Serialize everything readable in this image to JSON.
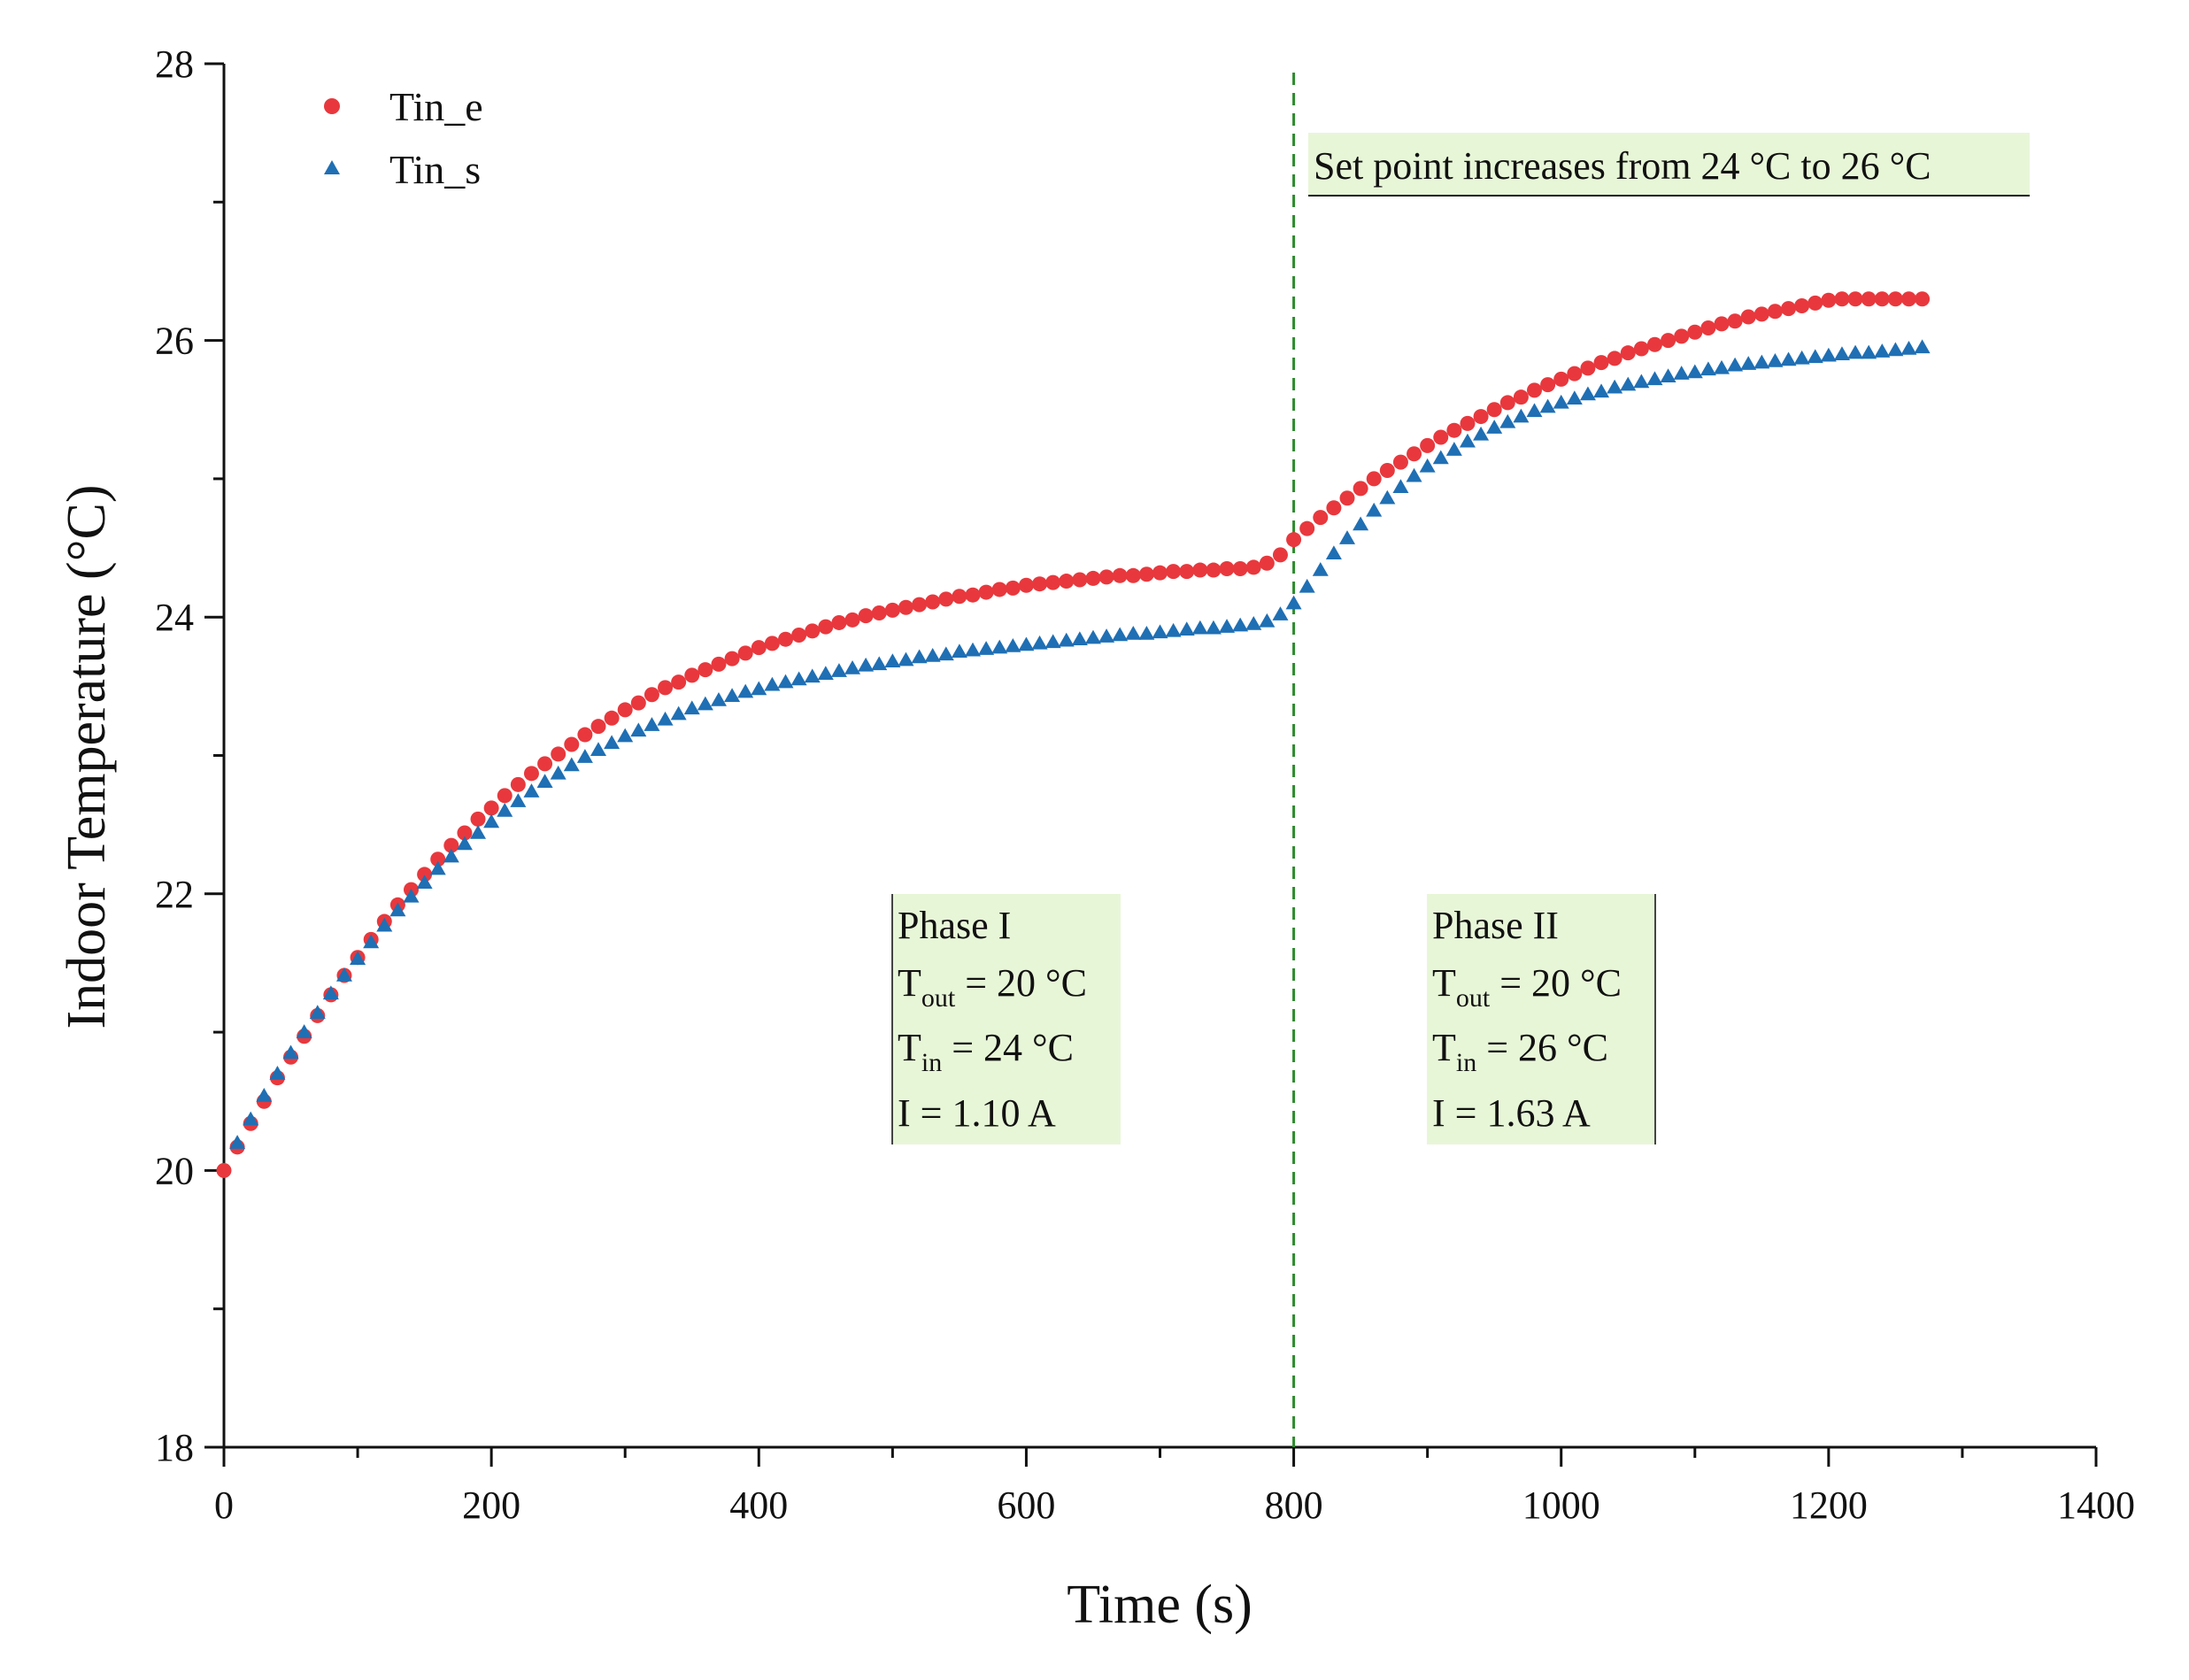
{
  "chart_data": {
    "type": "scatter",
    "xlabel": "Time (s)",
    "ylabel": "Indoor Temperature (°C)",
    "xlim": [
      0,
      1400
    ],
    "ylim": [
      18,
      28
    ],
    "x_ticks": [
      0,
      200,
      400,
      600,
      800,
      1000,
      1200,
      1400
    ],
    "y_ticks": [
      18,
      20,
      22,
      24,
      26,
      28
    ],
    "x_minor_step": 100,
    "y_minor_step": 1,
    "legend_position": "top-left",
    "colors": {
      "Tin_e": "#e8383d",
      "Tin_s": "#1f6fb4",
      "divider": "#2e8b2e",
      "box_fill": "#e8f6d8"
    },
    "series": [
      {
        "name": "Tin_e",
        "marker": "circle",
        "points": [
          [
            0,
            20.0
          ],
          [
            10,
            20.17
          ],
          [
            20,
            20.34
          ],
          [
            30,
            20.5
          ],
          [
            40,
            20.67
          ],
          [
            50,
            20.82
          ],
          [
            60,
            20.97
          ],
          [
            70,
            21.12
          ],
          [
            80,
            21.27
          ],
          [
            90,
            21.41
          ],
          [
            100,
            21.54
          ],
          [
            110,
            21.67
          ],
          [
            120,
            21.8
          ],
          [
            130,
            21.92
          ],
          [
            140,
            22.03
          ],
          [
            150,
            22.14
          ],
          [
            160,
            22.25
          ],
          [
            170,
            22.35
          ],
          [
            180,
            22.44
          ],
          [
            190,
            22.54
          ],
          [
            200,
            22.62
          ],
          [
            210,
            22.71
          ],
          [
            220,
            22.79
          ],
          [
            230,
            22.87
          ],
          [
            240,
            22.94
          ],
          [
            250,
            23.01
          ],
          [
            260,
            23.08
          ],
          [
            270,
            23.15
          ],
          [
            280,
            23.21
          ],
          [
            290,
            23.27
          ],
          [
            300,
            23.33
          ],
          [
            310,
            23.38
          ],
          [
            320,
            23.44
          ],
          [
            330,
            23.49
          ],
          [
            340,
            23.53
          ],
          [
            350,
            23.58
          ],
          [
            360,
            23.62
          ],
          [
            370,
            23.66
          ],
          [
            380,
            23.7
          ],
          [
            390,
            23.74
          ],
          [
            400,
            23.78
          ],
          [
            410,
            23.81
          ],
          [
            420,
            23.84
          ],
          [
            430,
            23.87
          ],
          [
            440,
            23.9
          ],
          [
            450,
            23.93
          ],
          [
            460,
            23.96
          ],
          [
            470,
            23.98
          ],
          [
            480,
            24.01
          ],
          [
            490,
            24.03
          ],
          [
            500,
            24.05
          ],
          [
            510,
            24.07
          ],
          [
            520,
            24.09
          ],
          [
            530,
            24.11
          ],
          [
            540,
            24.13
          ],
          [
            550,
            24.15
          ],
          [
            560,
            24.16
          ],
          [
            570,
            24.18
          ],
          [
            580,
            24.2
          ],
          [
            590,
            24.21
          ],
          [
            600,
            24.23
          ],
          [
            610,
            24.24
          ],
          [
            620,
            24.25
          ],
          [
            630,
            24.26
          ],
          [
            640,
            24.27
          ],
          [
            650,
            24.28
          ],
          [
            660,
            24.29
          ],
          [
            670,
            24.3
          ],
          [
            680,
            24.3
          ],
          [
            690,
            24.31
          ],
          [
            700,
            24.32
          ],
          [
            710,
            24.33
          ],
          [
            720,
            24.33
          ],
          [
            730,
            24.34
          ],
          [
            740,
            24.34
          ],
          [
            750,
            24.35
          ],
          [
            760,
            24.35
          ],
          [
            770,
            24.36
          ],
          [
            780,
            24.39
          ],
          [
            790,
            24.45
          ],
          [
            800,
            24.56
          ],
          [
            810,
            24.64
          ],
          [
            820,
            24.72
          ],
          [
            830,
            24.79
          ],
          [
            840,
            24.86
          ],
          [
            850,
            24.93
          ],
          [
            860,
            25.0
          ],
          [
            870,
            25.06
          ],
          [
            880,
            25.12
          ],
          [
            890,
            25.18
          ],
          [
            900,
            25.24
          ],
          [
            910,
            25.3
          ],
          [
            920,
            25.35
          ],
          [
            930,
            25.4
          ],
          [
            940,
            25.45
          ],
          [
            950,
            25.5
          ],
          [
            960,
            25.55
          ],
          [
            970,
            25.59
          ],
          [
            980,
            25.64
          ],
          [
            990,
            25.68
          ],
          [
            1000,
            25.72
          ],
          [
            1010,
            25.76
          ],
          [
            1020,
            25.8
          ],
          [
            1030,
            25.84
          ],
          [
            1040,
            25.87
          ],
          [
            1050,
            25.91
          ],
          [
            1060,
            25.94
          ],
          [
            1070,
            25.97
          ],
          [
            1080,
            26.0
          ],
          [
            1090,
            26.03
          ],
          [
            1100,
            26.06
          ],
          [
            1110,
            26.09
          ],
          [
            1120,
            26.12
          ],
          [
            1130,
            26.14
          ],
          [
            1140,
            26.17
          ],
          [
            1150,
            26.19
          ],
          [
            1160,
            26.21
          ],
          [
            1170,
            26.23
          ],
          [
            1180,
            26.25
          ],
          [
            1190,
            26.27
          ],
          [
            1200,
            26.29
          ],
          [
            1210,
            26.3
          ],
          [
            1220,
            26.3
          ],
          [
            1230,
            26.3
          ],
          [
            1240,
            26.3
          ],
          [
            1250,
            26.3
          ],
          [
            1260,
            26.3
          ],
          [
            1270,
            26.3
          ]
        ]
      },
      {
        "name": "Tin_s",
        "marker": "triangle",
        "points": [
          [
            10,
            20.2
          ],
          [
            20,
            20.37
          ],
          [
            30,
            20.54
          ],
          [
            40,
            20.7
          ],
          [
            50,
            20.85
          ],
          [
            60,
            21.0
          ],
          [
            70,
            21.14
          ],
          [
            80,
            21.28
          ],
          [
            90,
            21.41
          ],
          [
            100,
            21.53
          ],
          [
            110,
            21.65
          ],
          [
            120,
            21.77
          ],
          [
            130,
            21.88
          ],
          [
            140,
            21.98
          ],
          [
            150,
            22.08
          ],
          [
            160,
            22.18
          ],
          [
            170,
            22.27
          ],
          [
            180,
            22.36
          ],
          [
            190,
            22.44
          ],
          [
            200,
            22.52
          ],
          [
            210,
            22.6
          ],
          [
            220,
            22.67
          ],
          [
            230,
            22.74
          ],
          [
            240,
            22.81
          ],
          [
            250,
            22.87
          ],
          [
            260,
            22.93
          ],
          [
            270,
            22.99
          ],
          [
            280,
            23.04
          ],
          [
            290,
            23.09
          ],
          [
            300,
            23.14
          ],
          [
            310,
            23.18
          ],
          [
            320,
            23.22
          ],
          [
            330,
            23.26
          ],
          [
            340,
            23.3
          ],
          [
            350,
            23.34
          ],
          [
            360,
            23.37
          ],
          [
            370,
            23.4
          ],
          [
            380,
            23.43
          ],
          [
            390,
            23.46
          ],
          [
            400,
            23.48
          ],
          [
            410,
            23.51
          ],
          [
            420,
            23.53
          ],
          [
            430,
            23.55
          ],
          [
            440,
            23.57
          ],
          [
            450,
            23.59
          ],
          [
            460,
            23.61
          ],
          [
            470,
            23.63
          ],
          [
            480,
            23.65
          ],
          [
            490,
            23.66
          ],
          [
            500,
            23.68
          ],
          [
            510,
            23.69
          ],
          [
            520,
            23.71
          ],
          [
            530,
            23.72
          ],
          [
            540,
            23.73
          ],
          [
            550,
            23.75
          ],
          [
            560,
            23.76
          ],
          [
            570,
            23.77
          ],
          [
            580,
            23.78
          ],
          [
            590,
            23.79
          ],
          [
            600,
            23.8
          ],
          [
            610,
            23.81
          ],
          [
            620,
            23.82
          ],
          [
            630,
            23.83
          ],
          [
            640,
            23.84
          ],
          [
            650,
            23.85
          ],
          [
            660,
            23.86
          ],
          [
            670,
            23.87
          ],
          [
            680,
            23.88
          ],
          [
            690,
            23.88
          ],
          [
            700,
            23.89
          ],
          [
            710,
            23.9
          ],
          [
            720,
            23.91
          ],
          [
            730,
            23.92
          ],
          [
            740,
            23.92
          ],
          [
            750,
            23.93
          ],
          [
            760,
            23.94
          ],
          [
            770,
            23.95
          ],
          [
            780,
            23.97
          ],
          [
            790,
            24.02
          ],
          [
            800,
            24.1
          ],
          [
            810,
            24.22
          ],
          [
            820,
            24.34
          ],
          [
            830,
            24.46
          ],
          [
            840,
            24.57
          ],
          [
            850,
            24.67
          ],
          [
            860,
            24.77
          ],
          [
            870,
            24.86
          ],
          [
            880,
            24.94
          ],
          [
            890,
            25.02
          ],
          [
            900,
            25.09
          ],
          [
            910,
            25.15
          ],
          [
            920,
            25.21
          ],
          [
            930,
            25.27
          ],
          [
            940,
            25.32
          ],
          [
            950,
            25.37
          ],
          [
            960,
            25.41
          ],
          [
            970,
            25.45
          ],
          [
            980,
            25.49
          ],
          [
            990,
            25.52
          ],
          [
            1000,
            25.55
          ],
          [
            1010,
            25.58
          ],
          [
            1020,
            25.61
          ],
          [
            1030,
            25.63
          ],
          [
            1040,
            25.66
          ],
          [
            1050,
            25.68
          ],
          [
            1060,
            25.7
          ],
          [
            1070,
            25.72
          ],
          [
            1080,
            25.74
          ],
          [
            1090,
            25.76
          ],
          [
            1100,
            25.77
          ],
          [
            1110,
            25.79
          ],
          [
            1120,
            25.8
          ],
          [
            1130,
            25.82
          ],
          [
            1140,
            25.83
          ],
          [
            1150,
            25.84
          ],
          [
            1160,
            25.85
          ],
          [
            1170,
            25.86
          ],
          [
            1180,
            25.87
          ],
          [
            1190,
            25.88
          ],
          [
            1200,
            25.89
          ],
          [
            1210,
            25.9
          ],
          [
            1220,
            25.91
          ],
          [
            1230,
            25.91
          ],
          [
            1240,
            25.92
          ],
          [
            1250,
            25.93
          ],
          [
            1260,
            25.94
          ],
          [
            1270,
            25.95
          ]
        ]
      }
    ],
    "divider_x": 800,
    "annotations": {
      "setpoint": "Set point increases from 24 °C to 26 °C",
      "phase1": {
        "title": "Phase I",
        "tout_var": "T",
        "tout_sub": "out",
        "tout_val": " = 20 °C",
        "tin_var": "T",
        "tin_sub": "in",
        "tin_val": " = 24  °C",
        "current": "I = 1.10 A"
      },
      "phase2": {
        "title": "Phase II",
        "tout_var": "T",
        "tout_sub": "out",
        "tout_val": " = 20 °C",
        "tin_var": "T",
        "tin_sub": "in",
        "tin_val": " = 26  °C",
        "current": "I = 1.63 A"
      }
    }
  }
}
